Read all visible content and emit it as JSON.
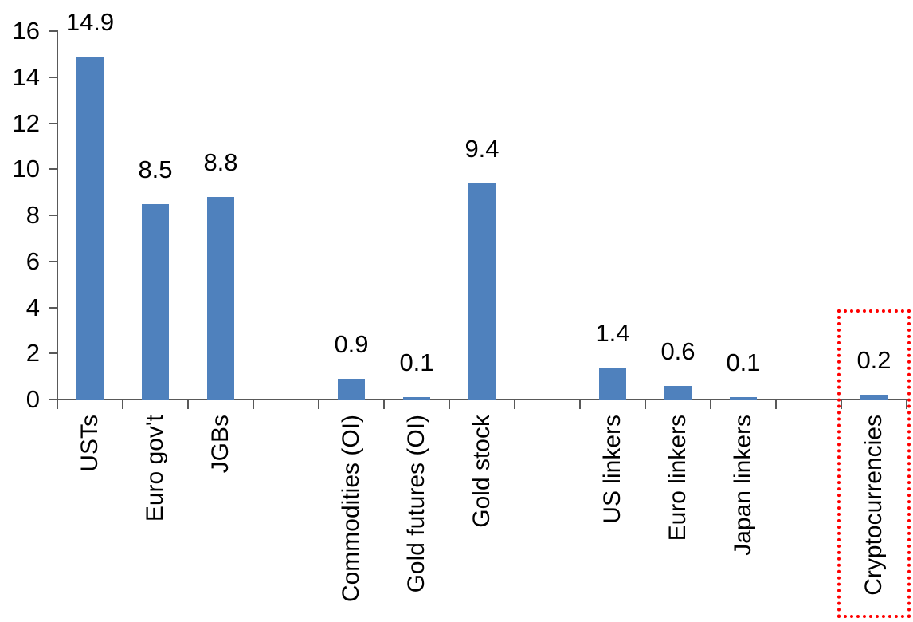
{
  "chart_data": {
    "type": "bar",
    "categories": [
      "USTs",
      "Euro gov't",
      "JGBs",
      "",
      "Commodities (OI)",
      "Gold futures (OI)",
      "Gold stock",
      "",
      "US linkers",
      "Euro linkers",
      "Japan linkers",
      "",
      "Cryptocurrencies"
    ],
    "values": [
      14.9,
      8.5,
      8.8,
      null,
      0.9,
      0.1,
      9.4,
      null,
      1.4,
      0.6,
      0.1,
      null,
      0.2
    ],
    "data_labels": [
      "14.9",
      "8.5",
      "8.8",
      null,
      "0.9",
      "0.1",
      "9.4",
      null,
      "1.4",
      "0.6",
      "0.1",
      null,
      "0.2"
    ],
    "y_ticks": [
      "0",
      "2",
      "4",
      "6",
      "8",
      "10",
      "12",
      "14",
      "16"
    ],
    "ylim": [
      0,
      16
    ],
    "grid": "off",
    "legend": "none",
    "bar_color": "#4F81BD",
    "axis_color": "#595959",
    "label_color": "#000000",
    "highlighted_category": "Cryptocurrencies",
    "highlight_style": "red-dotted-rectangle",
    "highlight_color": "#FF0000"
  }
}
